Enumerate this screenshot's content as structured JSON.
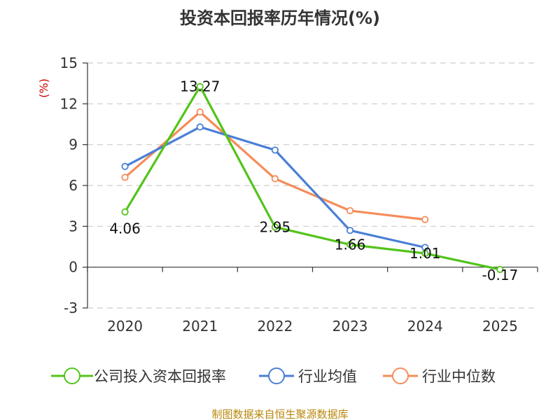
{
  "chart_data": {
    "type": "line",
    "title": "投资本回报率历年情况(%)",
    "ylabel": "(%)",
    "xlabel": "",
    "categories": [
      "2020",
      "2021",
      "2022",
      "2023",
      "2024",
      "2025"
    ],
    "ylim": [
      -3,
      15
    ],
    "yticks": [
      "15",
      "12",
      "9",
      "6",
      "3",
      "0",
      "-3"
    ],
    "grid": true,
    "legend_position": "bottom",
    "series": [
      {
        "name": "公司投入资本回报率",
        "color": "#52c41a",
        "values": [
          4.06,
          13.27,
          2.95,
          1.66,
          1.01,
          -0.17
        ],
        "labels": [
          "4.06",
          "13.27",
          "2.95",
          "1.66",
          "1.01",
          "-0.17"
        ]
      },
      {
        "name": "行业均值",
        "color": "#4a7fd6",
        "values": [
          7.4,
          10.3,
          8.6,
          2.7,
          1.45,
          null
        ]
      },
      {
        "name": "行业中位数",
        "color": "#f58c5a",
        "values": [
          6.6,
          11.4,
          6.5,
          4.15,
          3.5,
          null
        ]
      }
    ]
  },
  "source": "制图数据来自恒生聚源数据库"
}
